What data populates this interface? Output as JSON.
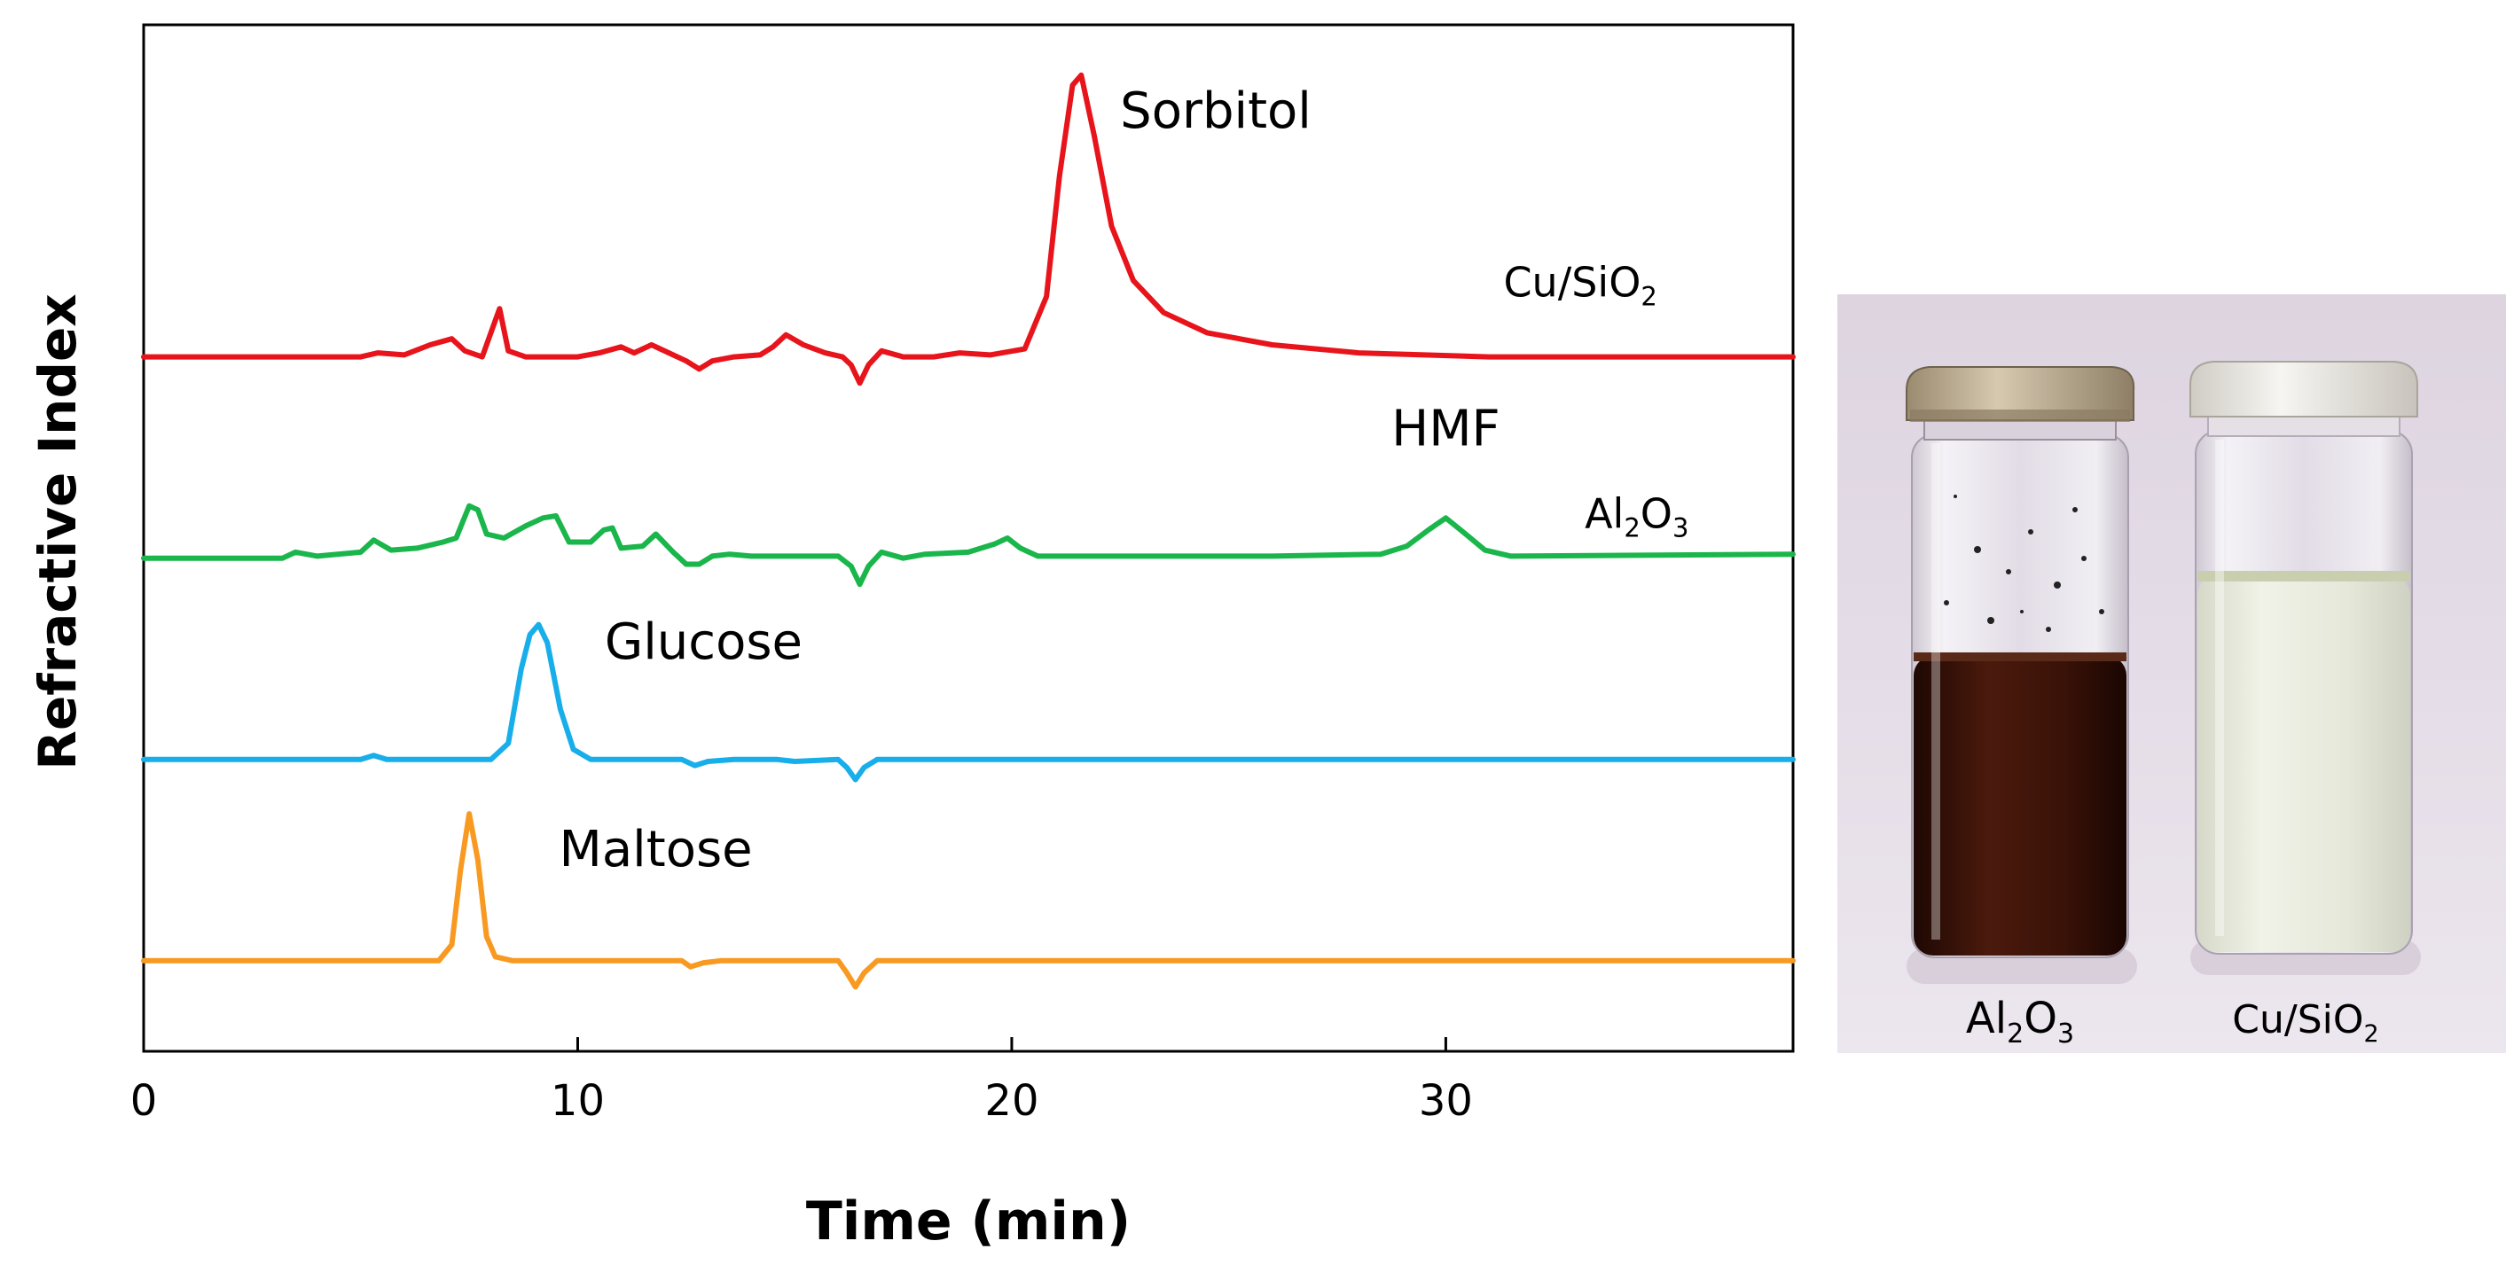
{
  "chart_data": {
    "type": "line",
    "title": "",
    "xlabel": "Time (min)",
    "ylabel": "Refractive Index",
    "xlim": [
      0,
      38
    ],
    "xticks": [
      0,
      10,
      20,
      30
    ],
    "ytick_labels": false,
    "grid": false,
    "legend": "none (traces labeled inline)",
    "series": [
      {
        "name": "Cu/SiO2",
        "label": {
          "main": "Cu/SiO",
          "sub": "2",
          "tail": ""
        },
        "color": "#e8141b",
        "baseline": 3.0,
        "points": [
          [
            0,
            3.0
          ],
          [
            5,
            3.0
          ],
          [
            5.4,
            3.02
          ],
          [
            6,
            3.01
          ],
          [
            6.6,
            3.06
          ],
          [
            7.1,
            3.09
          ],
          [
            7.4,
            3.03
          ],
          [
            7.8,
            3.0
          ],
          [
            8.05,
            3.15
          ],
          [
            8.2,
            3.24
          ],
          [
            8.4,
            3.03
          ],
          [
            8.8,
            3.0
          ],
          [
            10,
            3.0
          ],
          [
            10.5,
            3.02
          ],
          [
            11.0,
            3.05
          ],
          [
            11.3,
            3.02
          ],
          [
            11.7,
            3.06
          ],
          [
            12.1,
            3.02
          ],
          [
            12.5,
            2.98
          ],
          [
            12.8,
            2.94
          ],
          [
            13.1,
            2.98
          ],
          [
            13.6,
            3.0
          ],
          [
            14.2,
            3.01
          ],
          [
            14.5,
            3.05
          ],
          [
            14.8,
            3.11
          ],
          [
            15.2,
            3.06
          ],
          [
            15.7,
            3.02
          ],
          [
            16.1,
            3.0
          ],
          [
            16.3,
            2.96
          ],
          [
            16.5,
            2.87
          ],
          [
            16.7,
            2.96
          ],
          [
            17,
            3.03
          ],
          [
            17.5,
            3.0
          ],
          [
            18.2,
            3.0
          ],
          [
            18.8,
            3.02
          ],
          [
            19.5,
            3.01
          ],
          [
            20.3,
            3.04
          ],
          [
            20.8,
            3.3
          ],
          [
            21.1,
            3.9
          ],
          [
            21.4,
            4.35
          ],
          [
            21.6,
            4.4
          ],
          [
            21.9,
            4.1
          ],
          [
            22.3,
            3.65
          ],
          [
            22.8,
            3.38
          ],
          [
            23.5,
            3.22
          ],
          [
            24.5,
            3.12
          ],
          [
            26,
            3.06
          ],
          [
            28,
            3.02
          ],
          [
            31,
            3.0
          ],
          [
            38,
            3.0
          ]
        ]
      },
      {
        "name": "Al2O3",
        "label": {
          "main": "Al",
          "sub": "2",
          "tail": "O",
          "sub2": "3"
        },
        "color": "#1ab64b",
        "baseline": 2.0,
        "points": [
          [
            0,
            2.0
          ],
          [
            3.2,
            2.0
          ],
          [
            3.5,
            2.03
          ],
          [
            4,
            2.01
          ],
          [
            5,
            2.03
          ],
          [
            5.3,
            2.09
          ],
          [
            5.7,
            2.04
          ],
          [
            6.3,
            2.05
          ],
          [
            6.9,
            2.08
          ],
          [
            7.2,
            2.1
          ],
          [
            7.5,
            2.26
          ],
          [
            7.7,
            2.24
          ],
          [
            7.9,
            2.12
          ],
          [
            8.3,
            2.1
          ],
          [
            8.8,
            2.16
          ],
          [
            9.2,
            2.2
          ],
          [
            9.5,
            2.21
          ],
          [
            9.8,
            2.08
          ],
          [
            10.3,
            2.08
          ],
          [
            10.6,
            2.14
          ],
          [
            10.8,
            2.15
          ],
          [
            11,
            2.05
          ],
          [
            11.5,
            2.06
          ],
          [
            11.8,
            2.12
          ],
          [
            12.2,
            2.03
          ],
          [
            12.5,
            1.97
          ],
          [
            12.8,
            1.97
          ],
          [
            13.1,
            2.01
          ],
          [
            13.5,
            2.02
          ],
          [
            14,
            2.01
          ],
          [
            15,
            2.01
          ],
          [
            16,
            2.01
          ],
          [
            16.3,
            1.96
          ],
          [
            16.5,
            1.87
          ],
          [
            16.7,
            1.96
          ],
          [
            17,
            2.03
          ],
          [
            17.5,
            2.0
          ],
          [
            18,
            2.02
          ],
          [
            19,
            2.03
          ],
          [
            19.6,
            2.07
          ],
          [
            19.9,
            2.1
          ],
          [
            20.2,
            2.05
          ],
          [
            20.6,
            2.01
          ],
          [
            22,
            2.01
          ],
          [
            26,
            2.01
          ],
          [
            28.5,
            2.02
          ],
          [
            29.1,
            2.06
          ],
          [
            29.6,
            2.14
          ],
          [
            30,
            2.2
          ],
          [
            30.4,
            2.13
          ],
          [
            30.9,
            2.04
          ],
          [
            31.5,
            2.01
          ],
          [
            38,
            2.02
          ]
        ]
      },
      {
        "name": "Glucose",
        "label": {
          "main": "Glucose"
        },
        "color": "#18aeea",
        "baseline": 1.0,
        "points": [
          [
            0,
            1.0
          ],
          [
            5,
            1.0
          ],
          [
            5.3,
            1.02
          ],
          [
            5.6,
            1.0
          ],
          [
            8,
            1.0
          ],
          [
            8.4,
            1.08
          ],
          [
            8.7,
            1.45
          ],
          [
            8.9,
            1.62
          ],
          [
            9.1,
            1.67
          ],
          [
            9.3,
            1.58
          ],
          [
            9.6,
            1.25
          ],
          [
            9.9,
            1.05
          ],
          [
            10.3,
            1.0
          ],
          [
            12.4,
            1.0
          ],
          [
            12.7,
            0.97
          ],
          [
            13.0,
            0.99
          ],
          [
            13.6,
            1.0
          ],
          [
            14.6,
            1.0
          ],
          [
            15,
            0.99
          ],
          [
            16,
            1.0
          ],
          [
            16.2,
            0.96
          ],
          [
            16.4,
            0.9
          ],
          [
            16.6,
            0.96
          ],
          [
            16.9,
            1.0
          ],
          [
            38,
            1.0
          ]
        ]
      },
      {
        "name": "Maltose",
        "label": {
          "main": "Maltose"
        },
        "color": "#f89a22",
        "baseline": 0.0,
        "points": [
          [
            0,
            0.0
          ],
          [
            6.8,
            0.0
          ],
          [
            7.1,
            0.08
          ],
          [
            7.3,
            0.45
          ],
          [
            7.5,
            0.73
          ],
          [
            7.7,
            0.5
          ],
          [
            7.9,
            0.12
          ],
          [
            8.1,
            0.02
          ],
          [
            8.5,
            0.0
          ],
          [
            12.4,
            0.0
          ],
          [
            12.6,
            -0.03
          ],
          [
            12.9,
            -0.01
          ],
          [
            13.3,
            0.0
          ],
          [
            16,
            0.0
          ],
          [
            16.2,
            -0.06
          ],
          [
            16.4,
            -0.13
          ],
          [
            16.6,
            -0.06
          ],
          [
            16.9,
            0.0
          ],
          [
            38,
            0.0
          ]
        ]
      }
    ],
    "annotations": [
      {
        "text": "Sorbitol",
        "x": 24.7,
        "y": 4.14
      },
      {
        "text": "HMF",
        "x": 30.0,
        "y": 2.56
      },
      {
        "text": "Glucose",
        "x": 12.9,
        "y": 1.5
      },
      {
        "text": "Maltose",
        "x": 11.8,
        "y": 0.47
      }
    ],
    "series_label_positions": [
      {
        "series": "Cu/SiO2",
        "x": 33.1,
        "y": 3.3
      },
      {
        "series": "Al2O3",
        "x": 34.4,
        "y": 2.15
      }
    ],
    "ylim": [
      -0.45,
      4.65
    ]
  },
  "photo": {
    "labels": [
      {
        "main": "Al",
        "sub": "2",
        "tail": "O",
        "sub2": "3"
      },
      {
        "main": "Cu/SiO",
        "sub": "2",
        "tail": ""
      }
    ],
    "colors": {
      "background": "#e4dce6",
      "dark_liquid": "#3a1108",
      "light_liquid": "#e8e9dc"
    }
  }
}
